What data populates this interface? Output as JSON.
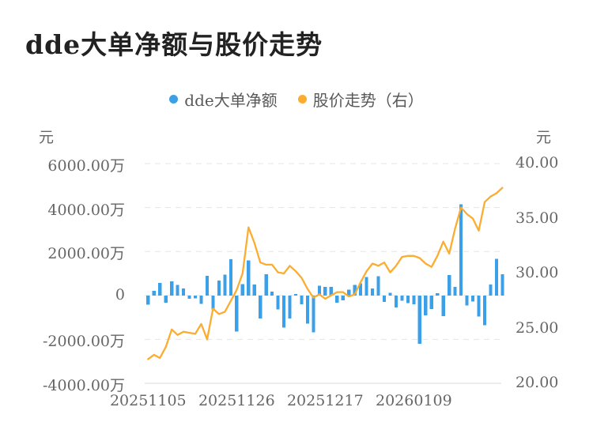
{
  "header": {
    "title": "dde大单净额与股价走势"
  },
  "legend": {
    "items": [
      {
        "label": "dde大单净额",
        "color": "#3BA0E8"
      },
      {
        "label": "股价走势（右）",
        "color": "#FAAD30"
      }
    ]
  },
  "axes": {
    "left": {
      "unit": "元",
      "ticks": [
        {
          "label": "6000.00万",
          "value": 6000
        },
        {
          "label": "4000.00万",
          "value": 4000
        },
        {
          "label": "2000.00万",
          "value": 2000
        },
        {
          "label": "0",
          "value": 0
        },
        {
          "label": "-2000.00万",
          "value": -2000
        },
        {
          "label": "-4000.00万",
          "value": -4000
        }
      ]
    },
    "right": {
      "unit": "元",
      "ticks": [
        {
          "label": "40.00",
          "value": 40
        },
        {
          "label": "35.00",
          "value": 35
        },
        {
          "label": "30.00",
          "value": 30
        },
        {
          "label": "25.00",
          "value": 25
        },
        {
          "label": "20.00",
          "value": 20
        }
      ]
    },
    "x": {
      "ticks": [
        {
          "label": "20251105",
          "index": 0
        },
        {
          "label": "20251126",
          "index": 15
        },
        {
          "label": "20251217",
          "index": 30
        },
        {
          "label": "20260109",
          "index": 45
        }
      ]
    }
  },
  "chart_data": {
    "type": "bar+line",
    "title": "dde大单净额与股价走势",
    "grid": "horizontal-dashed",
    "legend_position": "top-center",
    "left_ylim": [
      -4000,
      6000
    ],
    "left_unit": "万元",
    "right_ylim": [
      20,
      40
    ],
    "right_unit": "元",
    "categories": [
      "20251105",
      "20251106",
      "20251107",
      "20251110",
      "20251111",
      "20251112",
      "20251113",
      "20251114",
      "20251117",
      "20251118",
      "20251119",
      "20251120",
      "20251121",
      "20251124",
      "20251125",
      "20251126",
      "20251127",
      "20251128",
      "20251201",
      "20251202",
      "20251203",
      "20251204",
      "20251205",
      "20251208",
      "20251209",
      "20251210",
      "20251211",
      "20251212",
      "20251215",
      "20251216",
      "20251217",
      "20251218",
      "20251219",
      "20251222",
      "20251223",
      "20251224",
      "20251225",
      "20251226",
      "20251229",
      "20251230",
      "20251231",
      "20260105",
      "20260106",
      "20260107",
      "20260108",
      "20260109",
      "20260112",
      "20260113",
      "20260114",
      "20260115",
      "20260116",
      "20260119",
      "20260120",
      "20260121",
      "20260122",
      "20260123",
      "20260126",
      "20260127",
      "20260128",
      "20260129",
      "20260130"
    ],
    "series": [
      {
        "name": "dde大单净额",
        "type": "bar",
        "axis": "left",
        "unit": "万元",
        "color": "#3BA0E8",
        "values": [
          -420,
          200,
          560,
          -330,
          640,
          480,
          320,
          -160,
          -130,
          -390,
          900,
          -640,
          680,
          950,
          1640,
          -1650,
          510,
          1600,
          500,
          -1050,
          960,
          170,
          -640,
          -1470,
          -1050,
          60,
          -400,
          -1290,
          -1680,
          450,
          380,
          380,
          -330,
          -215,
          265,
          480,
          550,
          840,
          320,
          880,
          -300,
          120,
          -540,
          -240,
          -350,
          -400,
          -2200,
          -900,
          -610,
          100,
          -935,
          920,
          380,
          4150,
          -455,
          -275,
          -960,
          -1350,
          500,
          1670,
          960
        ]
      },
      {
        "name": "股价走势",
        "type": "line",
        "axis": "right",
        "unit": "元",
        "color": "#FAAD30",
        "values": [
          22.2,
          22.6,
          22.3,
          23.3,
          24.9,
          24.4,
          24.7,
          24.6,
          24.5,
          25.4,
          24.0,
          26.8,
          26.3,
          26.5,
          27.5,
          28.5,
          30.0,
          34.2,
          32.8,
          31.0,
          30.8,
          30.8,
          30.1,
          30.0,
          30.7,
          30.2,
          29.6,
          28.6,
          27.8,
          28.1,
          27.7,
          28.0,
          28.3,
          28.3,
          27.9,
          28.1,
          29.2,
          30.2,
          30.9,
          30.7,
          31.0,
          30.1,
          30.7,
          31.5,
          31.6,
          31.6,
          31.4,
          30.9,
          30.6,
          31.6,
          32.9,
          31.8,
          34.1,
          36.0,
          35.4,
          35.0,
          33.9,
          36.5,
          37.0,
          37.3,
          37.8
        ]
      }
    ]
  }
}
